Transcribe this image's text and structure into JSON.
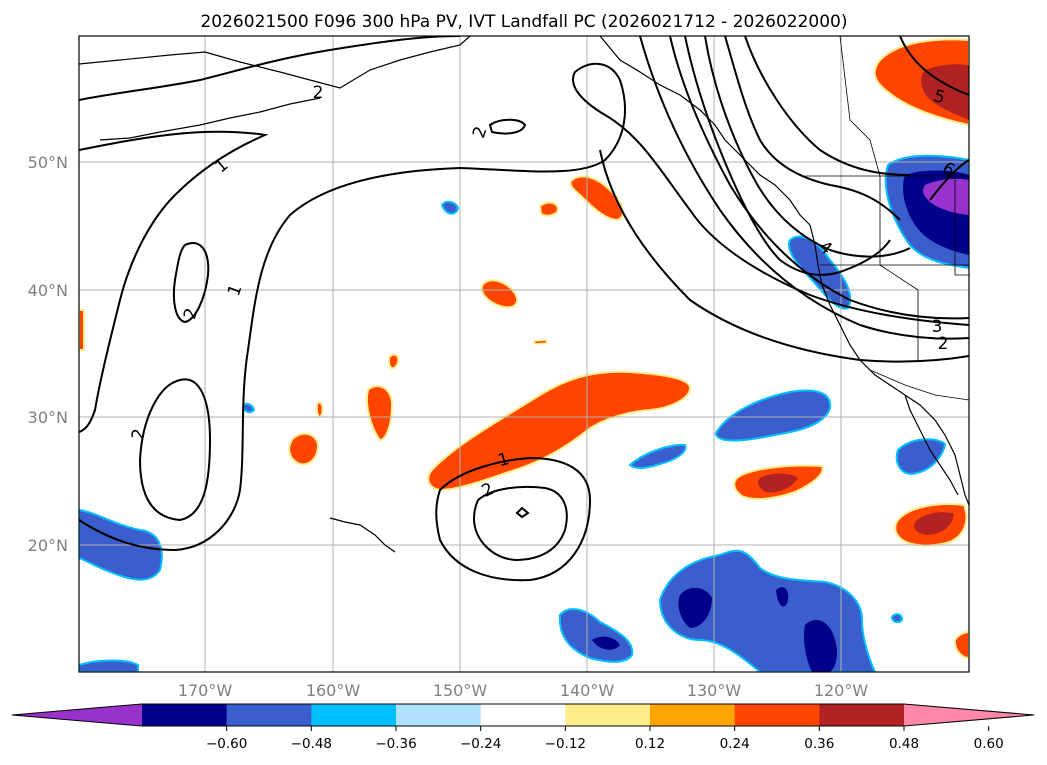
{
  "title": "2026021500 F096 300 hPa PV, IVT Landfall PC (2026021712 - 2026022000)",
  "lat_labels": [
    "50°N",
    "40°N",
    "30°N",
    "20°N"
  ],
  "lon_labels": [
    "170°W",
    "160°W",
    "150°W",
    "140°W",
    "130°W",
    "120°W"
  ],
  "colorbar": {
    "colors": [
      "#9932cc",
      "#00008b",
      "#3a5fcd",
      "#00bfff",
      "#b0e2ff",
      "#ffffff",
      "#ffec8b",
      "#ffa500",
      "#ff4500",
      "#b22222",
      "#ff88aa"
    ],
    "tick_labels": [
      "−0.60",
      "−0.48",
      "−0.36",
      "−0.24",
      "−0.12",
      "0.12",
      "0.24",
      "0.36",
      "0.48",
      "0.60"
    ],
    "extend": "both"
  },
  "contour_labels": [
    {
      "text": "1"
    },
    {
      "text": "1"
    },
    {
      "text": "2"
    },
    {
      "text": "2"
    },
    {
      "text": "2"
    },
    {
      "text": "2"
    },
    {
      "text": "1"
    },
    {
      "text": "2"
    },
    {
      "text": "5"
    },
    {
      "text": "3"
    },
    {
      "text": "2"
    },
    {
      "text": "4"
    },
    {
      "text": "6"
    }
  ]
}
